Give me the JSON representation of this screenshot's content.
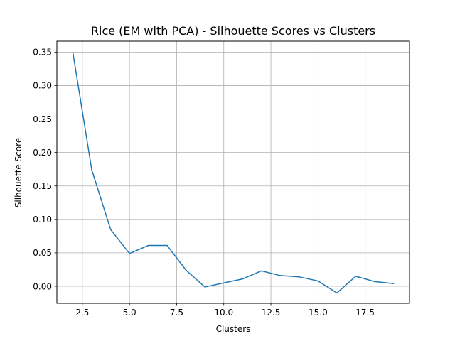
{
  "chart_data": {
    "type": "line",
    "title": "Rice (EM with PCA) - Silhouette Scores vs Clusters",
    "xlabel": "Clusters",
    "ylabel": "Silhouette Score",
    "xlim": [
      1.15,
      19.85
    ],
    "ylim": [
      -0.0255,
      0.3663
    ],
    "xticks": [
      2.5,
      5.0,
      7.5,
      10.0,
      12.5,
      15.0,
      17.5
    ],
    "xtick_labels": [
      "2.5",
      "5.0",
      "7.5",
      "10.0",
      "12.5",
      "15.0",
      "17.5"
    ],
    "yticks": [
      0.0,
      0.05,
      0.1,
      0.15,
      0.2,
      0.25,
      0.3,
      0.35
    ],
    "ytick_labels": [
      "0.00",
      "0.05",
      "0.10",
      "0.15",
      "0.20",
      "0.25",
      "0.30",
      "0.35"
    ],
    "grid": true,
    "series": [
      {
        "color": "#1f77b4",
        "x": [
          2,
          3,
          4,
          5,
          6,
          7,
          8,
          9,
          10,
          11,
          12,
          13,
          14,
          15,
          16,
          17,
          18,
          19
        ],
        "values": [
          0.349,
          0.174,
          0.085,
          0.049,
          0.061,
          0.061,
          0.024,
          -0.001,
          0.005,
          0.011,
          0.023,
          0.016,
          0.014,
          0.008,
          -0.01,
          0.015,
          0.007,
          0.004
        ]
      }
    ]
  }
}
